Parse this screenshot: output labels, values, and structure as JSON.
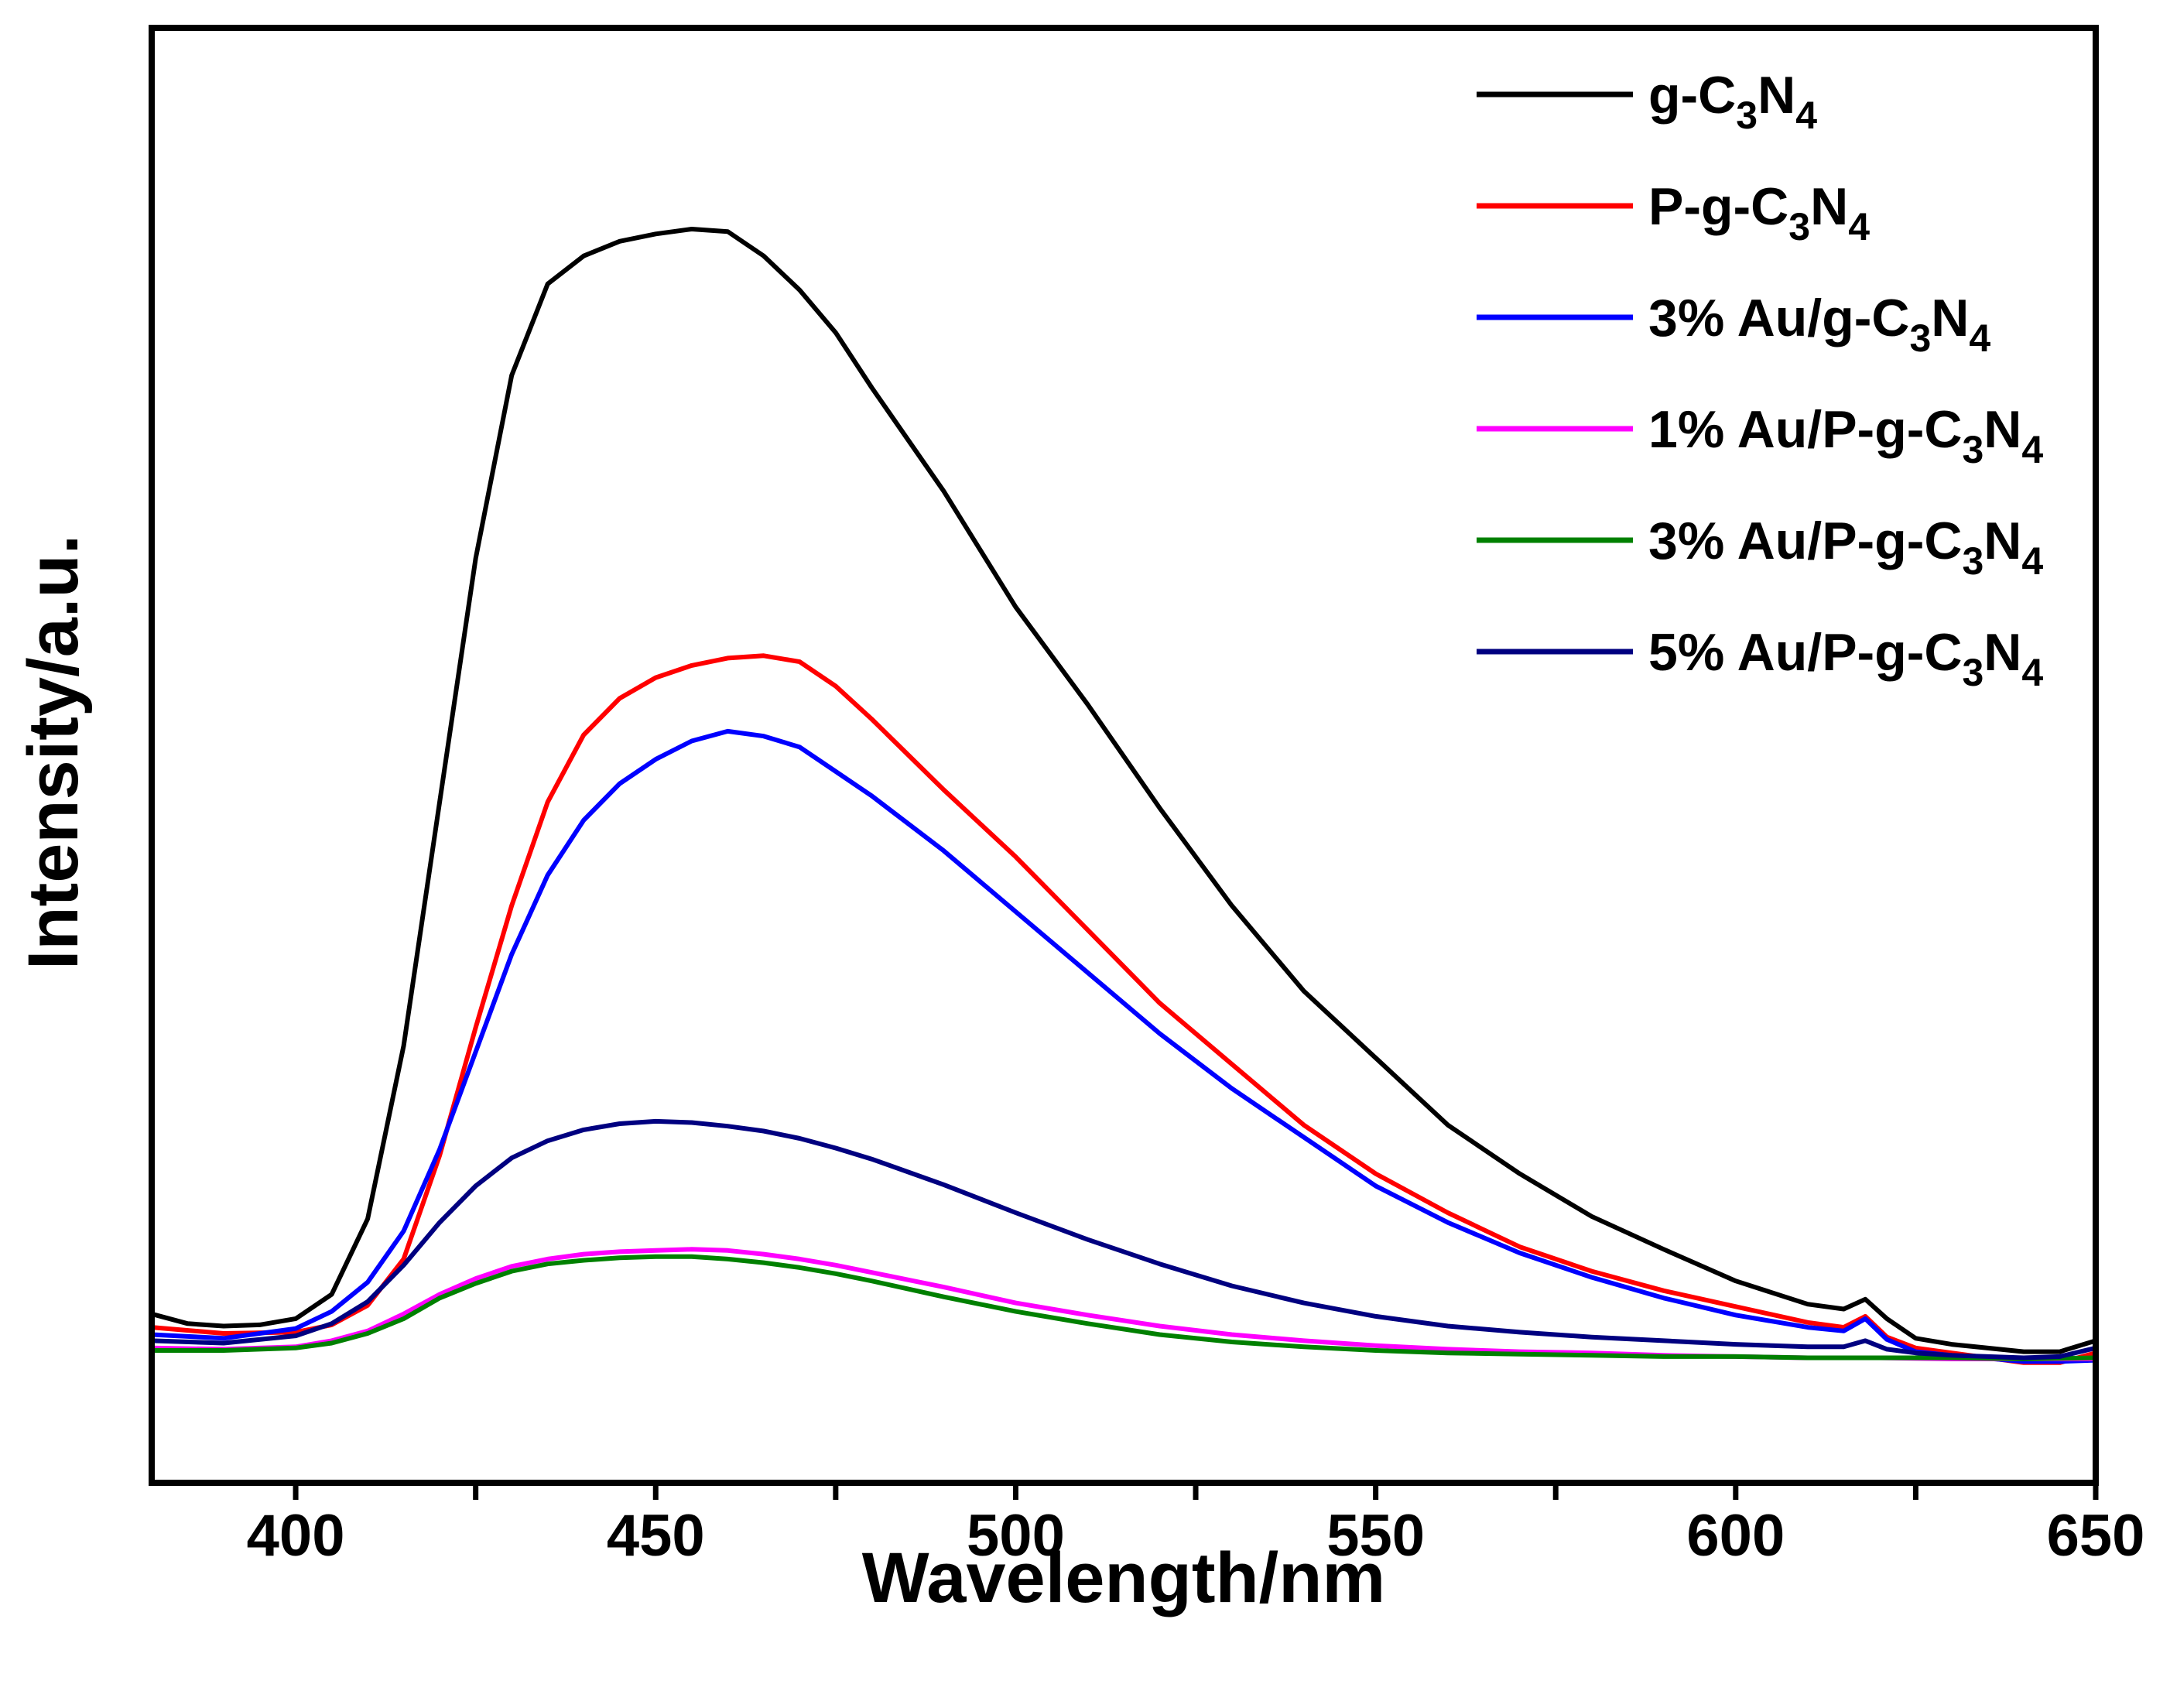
{
  "chart_data": {
    "type": "line",
    "title": "",
    "xlabel": "Wavelength/nm",
    "ylabel": "Intensity/a.u.",
    "xlim": [
      380,
      650
    ],
    "ylim": [
      0,
      100
    ],
    "x_ticks": [
      400,
      450,
      500,
      550,
      600,
      650
    ],
    "y_ticks_shown": false,
    "grid": false,
    "legend_position": "top-right",
    "series": [
      {
        "name": "g-C3N4",
        "label_main": "g-C",
        "sub1": "3",
        "mid": "N",
        "sub2": "4",
        "color": "#000000",
        "x": [
          380,
          385,
          390,
          395,
          400,
          405,
          410,
          415,
          420,
          425,
          430,
          435,
          440,
          445,
          450,
          455,
          460,
          465,
          470,
          475,
          480,
          490,
          500,
          510,
          520,
          530,
          540,
          550,
          560,
          570,
          580,
          590,
          600,
          610,
          615,
          618,
          621,
          625,
          630,
          640,
          645,
          650
        ],
        "y": [
          7,
          6.2,
          6.0,
          6.1,
          6.6,
          8.6,
          14.8,
          29,
          49,
          69,
          84,
          91.5,
          93.8,
          95,
          95.6,
          96.0,
          95.8,
          93.8,
          91,
          87.5,
          83,
          74.5,
          65,
          57,
          48.5,
          40.5,
          33.5,
          28,
          22.5,
          18.5,
          15,
          12.3,
          9.7,
          7.8,
          7.4,
          8.2,
          6.6,
          5.0,
          4.5,
          3.9,
          3.9,
          4.8
        ]
      },
      {
        "name": "P-g-C3N4",
        "label_main": "P-g-C",
        "sub1": "3",
        "mid": "N",
        "sub2": "4",
        "color": "#ff0000",
        "x": [
          380,
          390,
          400,
          405,
          410,
          415,
          420,
          425,
          430,
          435,
          440,
          445,
          450,
          455,
          460,
          465,
          470,
          475,
          480,
          490,
          500,
          510,
          520,
          530,
          540,
          550,
          560,
          570,
          580,
          590,
          600,
          610,
          615,
          618,
          621,
          625,
          630,
          640,
          645,
          650
        ],
        "y": [
          5.9,
          5.4,
          5.5,
          6.1,
          7.7,
          11.5,
          20,
          30.5,
          40.5,
          49,
          54.5,
          57.5,
          59.2,
          60.2,
          60.8,
          61.0,
          60.5,
          58.5,
          55.8,
          50,
          44.5,
          38.5,
          32.5,
          27.5,
          22.5,
          18.5,
          15.3,
          12.5,
          10.5,
          8.9,
          7.6,
          6.3,
          5.9,
          6.8,
          5.1,
          4.2,
          3.8,
          3.0,
          3.0,
          3.8
        ]
      },
      {
        "name": "3% Au/g-C3N4",
        "label_main": "3% Au/g-C",
        "sub1": "3",
        "mid": "N",
        "sub2": "4",
        "color": "#0000ff",
        "x": [
          380,
          390,
          400,
          405,
          410,
          415,
          420,
          425,
          430,
          435,
          440,
          445,
          450,
          455,
          460,
          465,
          470,
          475,
          480,
          490,
          500,
          510,
          520,
          530,
          540,
          550,
          560,
          570,
          580,
          590,
          600,
          610,
          615,
          618,
          621,
          625,
          630,
          640,
          645,
          650
        ],
        "y": [
          5.3,
          5.0,
          5.8,
          7.2,
          9.6,
          13.8,
          20.5,
          28.5,
          36.5,
          43,
          47.5,
          50.5,
          52.5,
          54,
          54.8,
          54.4,
          53.5,
          51.5,
          49.5,
          45,
          40,
          35,
          30,
          25.5,
          21.5,
          17.5,
          14.5,
          12,
          10,
          8.3,
          6.9,
          5.9,
          5.6,
          6.6,
          4.9,
          3.9,
          3.6,
          3.1,
          3.1,
          3.2
        ]
      },
      {
        "name": "1% Au/P-g-C3N4",
        "label_main": "1% Au/P-g-C",
        "sub1": "3",
        "mid": "N",
        "sub2": "4",
        "color": "#ff00ff",
        "x": [
          380,
          390,
          400,
          405,
          410,
          415,
          420,
          425,
          430,
          435,
          440,
          445,
          450,
          455,
          460,
          465,
          470,
          475,
          480,
          490,
          500,
          510,
          520,
          530,
          540,
          550,
          560,
          570,
          580,
          590,
          600,
          610,
          620,
          630,
          640,
          650
        ],
        "y": [
          4.2,
          4.1,
          4.3,
          4.8,
          5.6,
          7.0,
          8.6,
          9.9,
          10.9,
          11.5,
          11.9,
          12.1,
          12.2,
          12.3,
          12.2,
          11.9,
          11.5,
          11.0,
          10.4,
          9.2,
          7.9,
          6.9,
          6.0,
          5.3,
          4.8,
          4.4,
          4.1,
          3.9,
          3.8,
          3.6,
          3.5,
          3.4,
          3.4,
          3.3,
          3.3,
          3.3
        ]
      },
      {
        "name": "3% Au/P-g-C3N4",
        "label_main": "3% Au/P-g-C",
        "sub1": "3",
        "mid": "N",
        "sub2": "4",
        "color": "#008000",
        "x": [
          380,
          390,
          400,
          405,
          410,
          415,
          420,
          425,
          430,
          435,
          440,
          445,
          450,
          455,
          460,
          465,
          470,
          475,
          480,
          490,
          500,
          510,
          520,
          530,
          540,
          550,
          560,
          570,
          580,
          590,
          600,
          610,
          620,
          630,
          640,
          650
        ],
        "y": [
          4.0,
          4.0,
          4.2,
          4.6,
          5.4,
          6.6,
          8.3,
          9.5,
          10.5,
          11.1,
          11.4,
          11.6,
          11.7,
          11.7,
          11.5,
          11.2,
          10.8,
          10.3,
          9.7,
          8.4,
          7.2,
          6.2,
          5.3,
          4.7,
          4.3,
          4.0,
          3.8,
          3.7,
          3.6,
          3.5,
          3.5,
          3.4,
          3.4,
          3.4,
          3.3,
          3.4
        ]
      },
      {
        "name": "5% Au/P-g-C3N4",
        "label_main": "5% Au/P-g-C",
        "sub1": "3",
        "mid": "N",
        "sub2": "4",
        "color": "#000080",
        "x": [
          380,
          390,
          400,
          405,
          410,
          415,
          420,
          425,
          430,
          435,
          440,
          445,
          450,
          455,
          460,
          465,
          470,
          475,
          480,
          490,
          500,
          510,
          520,
          530,
          540,
          550,
          560,
          570,
          580,
          590,
          600,
          610,
          615,
          618,
          621,
          625,
          630,
          640,
          645,
          650
        ],
        "y": [
          4.8,
          4.6,
          5.2,
          6.2,
          8.0,
          11.0,
          14.5,
          17.5,
          19.8,
          21.2,
          22.1,
          22.6,
          22.8,
          22.7,
          22.4,
          22.0,
          21.4,
          20.6,
          19.7,
          17.6,
          15.3,
          13.1,
          11.1,
          9.3,
          7.9,
          6.8,
          6.0,
          5.5,
          5.1,
          4.8,
          4.5,
          4.3,
          4.3,
          4.8,
          4.1,
          3.8,
          3.6,
          3.4,
          3.5,
          4.2
        ]
      }
    ]
  }
}
